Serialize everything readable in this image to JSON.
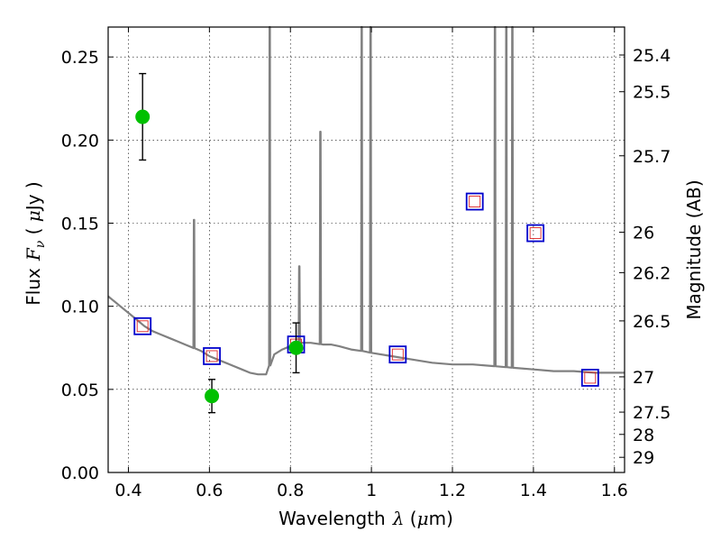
{
  "chart_data": {
    "type": "scatter",
    "xlabel_text": "Wavelength",
    "xlabel_sym": "λ",
    "xlabel_unit_open": " (",
    "xlabel_unit_mu": "μ",
    "xlabel_unit_close": "m)",
    "ylabel_text": "Flux",
    "ylabel_sym": "F",
    "ylabel_sub": "ν",
    "ylabel_unit_open": " ( ",
    "ylabel_unit_mu": "μ",
    "ylabel_unit_close": "Jy )",
    "y2label": "Magnitude (AB)",
    "xlim": [
      0.35,
      1.625
    ],
    "ylim": [
      0.0,
      0.268
    ],
    "grid": true,
    "xticks": [
      0.4,
      0.6,
      0.8,
      1.0,
      1.2,
      1.4,
      1.6
    ],
    "xtick_labels": [
      "0.4",
      "0.6",
      "0.8",
      "1",
      "1.2",
      "1.4",
      "1.6"
    ],
    "yticks": [
      0.0,
      0.05,
      0.1,
      0.15,
      0.2,
      0.25
    ],
    "ytick_labels": [
      "0.00",
      "0.05",
      "0.10",
      "0.15",
      "0.20",
      "0.25"
    ],
    "mag_ticks": [
      {
        "mag": 25.4,
        "label": "25.4"
      },
      {
        "mag": 25.5,
        "label": "25.5"
      },
      {
        "mag": 25.7,
        "label": "25.7"
      },
      {
        "mag": 26.0,
        "label": "26"
      },
      {
        "mag": 26.2,
        "label": "26.2"
      },
      {
        "mag": 26.5,
        "label": "26.5"
      },
      {
        "mag": 27.0,
        "label": "27"
      },
      {
        "mag": 27.5,
        "label": "27.5"
      },
      {
        "mag": 28.0,
        "label": "28"
      },
      {
        "mag": 29.0,
        "label": "29"
      }
    ],
    "colors": {
      "model": "#808080",
      "observed": "#00c000",
      "errorbar": "#000000",
      "model_box": "#0000cc",
      "model_box_inner": "#dd2222",
      "grid": "#000000"
    },
    "model_spectrum": {
      "continuum": [
        [
          0.35,
          0.106
        ],
        [
          0.36,
          0.104
        ],
        [
          0.38,
          0.1
        ],
        [
          0.4,
          0.096
        ],
        [
          0.42,
          0.092
        ],
        [
          0.44,
          0.088
        ],
        [
          0.46,
          0.085
        ],
        [
          0.48,
          0.083
        ],
        [
          0.5,
          0.081
        ],
        [
          0.52,
          0.079
        ],
        [
          0.54,
          0.077
        ],
        [
          0.56,
          0.075
        ],
        [
          0.58,
          0.073
        ],
        [
          0.6,
          0.07
        ],
        [
          0.62,
          0.068
        ],
        [
          0.64,
          0.066
        ],
        [
          0.66,
          0.064
        ],
        [
          0.68,
          0.062
        ],
        [
          0.7,
          0.06
        ],
        [
          0.72,
          0.059
        ],
        [
          0.74,
          0.059
        ],
        [
          0.75,
          0.065
        ],
        [
          0.76,
          0.071
        ],
        [
          0.78,
          0.074
        ],
        [
          0.8,
          0.076
        ],
        [
          0.82,
          0.078
        ],
        [
          0.85,
          0.078
        ],
        [
          0.88,
          0.077
        ],
        [
          0.9,
          0.077
        ],
        [
          0.92,
          0.076
        ],
        [
          0.95,
          0.074
        ],
        [
          0.98,
          0.073
        ],
        [
          1.0,
          0.072
        ],
        [
          1.05,
          0.07
        ],
        [
          1.1,
          0.068
        ],
        [
          1.15,
          0.066
        ],
        [
          1.2,
          0.065
        ],
        [
          1.25,
          0.065
        ],
        [
          1.3,
          0.064
        ],
        [
          1.35,
          0.063
        ],
        [
          1.4,
          0.062
        ],
        [
          1.45,
          0.061
        ],
        [
          1.5,
          0.061
        ],
        [
          1.55,
          0.06
        ],
        [
          1.6,
          0.06
        ],
        [
          1.625,
          0.06
        ]
      ],
      "emission_lines": [
        {
          "x": 0.562,
          "peak": 0.152
        },
        {
          "x": 0.749,
          "peak": 0.268
        },
        {
          "x": 0.822,
          "peak": 0.124
        },
        {
          "x": 0.874,
          "peak": 0.205
        },
        {
          "x": 0.976,
          "peak": 0.268
        },
        {
          "x": 0.998,
          "peak": 0.268
        },
        {
          "x": 1.305,
          "peak": 0.268
        },
        {
          "x": 1.333,
          "peak": 0.268
        },
        {
          "x": 1.348,
          "peak": 0.268
        }
      ]
    },
    "observed_points": [
      {
        "x": 0.435,
        "y": 0.214,
        "yerr": 0.026
      },
      {
        "x": 0.606,
        "y": 0.046,
        "yerr": 0.01
      },
      {
        "x": 0.814,
        "y": 0.075,
        "yerr": 0.015
      }
    ],
    "model_photometry": [
      {
        "x": 0.435,
        "y": 0.088
      },
      {
        "x": 0.606,
        "y": 0.07
      },
      {
        "x": 0.814,
        "y": 0.077
      },
      {
        "x": 1.065,
        "y": 0.071
      },
      {
        "x": 1.255,
        "y": 0.163
      },
      {
        "x": 1.405,
        "y": 0.144
      },
      {
        "x": 1.54,
        "y": 0.057
      }
    ]
  }
}
